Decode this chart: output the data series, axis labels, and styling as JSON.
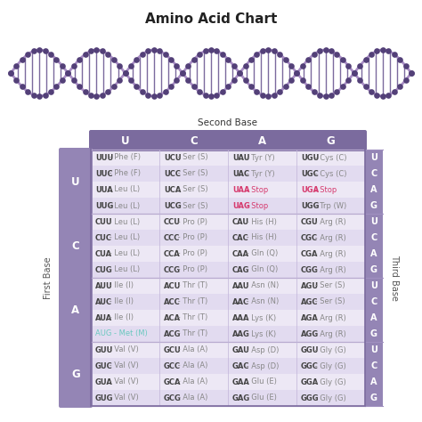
{
  "title": "Amino Acid Chart",
  "title_fontsize": 11,
  "second_base_label": "Second Base",
  "first_base_label": "First Base",
  "third_base_label": "Third Base",
  "second_bases": [
    "U",
    "C",
    "A",
    "G"
  ],
  "first_bases": [
    "U",
    "C",
    "A",
    "G"
  ],
  "third_bases": [
    "U",
    "C",
    "A",
    "G"
  ],
  "header_bg": "#7B6B9E",
  "first_base_bg": "#9485B5",
  "third_base_bg": "#9485B5",
  "row_bg_light": "#EDE8F5",
  "row_bg_dark": "#E2DBF0",
  "stop_color": "#D63B6E",
  "met_color": "#6BC9C0",
  "normal_codon_color": "#444444",
  "normal_rest_color": "#888888",
  "header_text_color": "#FFFFFF",
  "first_base_text_color": "#FFFFFF",
  "third_base_text_color": "#FFFFFF",
  "bg_color": "#FFFFFF",
  "rows": [
    [
      "UUU - Phe (F)",
      "UCU - Ser (S)",
      "UAU - Tyr (Y)",
      "UGU - Cys (C)",
      "U",
      "U"
    ],
    [
      "UUC - Phe (F)",
      "UCC - Ser (S)",
      "UAC - Tyr (Y)",
      "UGC - Cys (C)",
      "C",
      "U"
    ],
    [
      "UUA - Leu (L)",
      "UCA - Ser (S)",
      "UAA - Stop",
      "UGA - Stop",
      "A",
      "U"
    ],
    [
      "UUG - Leu (L)",
      "UCG - Ser (S)",
      "UAG - Stop",
      "UGG - Trp (W)",
      "G",
      "U"
    ],
    [
      "CUU - Leu (L)",
      "CCU - Pro (P)",
      "CAU - His (H)",
      "CGU - Arg (R)",
      "U",
      "C"
    ],
    [
      "CUC - Leu (L)",
      "CCC - Pro (P)",
      "CAC - His (H)",
      "CGC - Arg (R)",
      "C",
      "C"
    ],
    [
      "CUA - Leu (L)",
      "CCA - Pro (P)",
      "CAA - Gln (Q)",
      "CGA - Arg (R)",
      "A",
      "C"
    ],
    [
      "CUG - Leu (L)",
      "CCG - Pro (P)",
      "CAG - Gln (Q)",
      "CGG - Arg (R)",
      "G",
      "C"
    ],
    [
      "AUU - Ile (I)",
      "ACU - Thr (T)",
      "AAU - Asn (N)",
      "AGU - Ser (S)",
      "U",
      "A"
    ],
    [
      "AUC - Ile (I)",
      "ACC - Thr (T)",
      "AAC - Asn (N)",
      "AGC - Ser (S)",
      "C",
      "A"
    ],
    [
      "AUA - Ile (I)",
      "ACA - Thr (T)",
      "AAA - Lys (K)",
      "AGA - Arg (R)",
      "A",
      "A"
    ],
    [
      "AUG - Met (M)",
      "ACG - Thr (T)",
      "AAG - Lys (K)",
      "AGG - Arg (R)",
      "G",
      "A"
    ],
    [
      "GUU - Val (V)",
      "GCU - Ala (A)",
      "GAU - Asp (D)",
      "GGU - Gly (G)",
      "U",
      "G"
    ],
    [
      "GUC - Val (V)",
      "GCC - Ala (A)",
      "GAC - Asp (D)",
      "GGC - Gly (G)",
      "C",
      "G"
    ],
    [
      "GUA - Val (V)",
      "GCA - Ala (A)",
      "GAA - Glu (E)",
      "GGA - Gly (G)",
      "A",
      "G"
    ],
    [
      "GUG - Val (V)",
      "GCG - Ala (A)",
      "GAG - Glu (E)",
      "GGG - Gly (G)",
      "G",
      "G"
    ]
  ],
  "stop_codons": [
    "UAA",
    "UGA",
    "UAG"
  ],
  "met_codon": "AUG",
  "dna_color_dark": "#534078",
  "dna_color_light": "#A98EC5",
  "dna_rung_color": "#7B6A9E"
}
